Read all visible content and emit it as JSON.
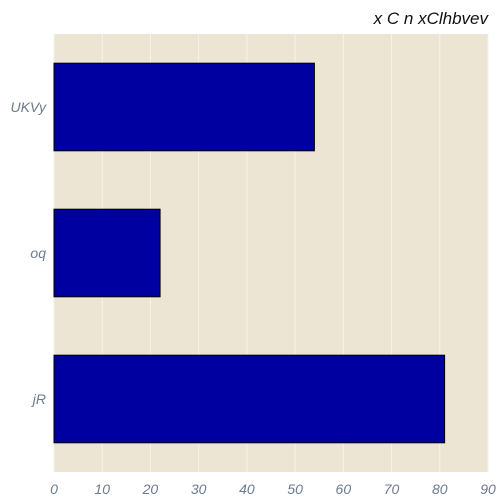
{
  "chart_data": {
    "type": "bar",
    "orientation": "horizontal",
    "title": "x C n xClhbvev",
    "xlabel": "",
    "ylabel": "",
    "categories": [
      "UKVy",
      "oq",
      "jR"
    ],
    "values": [
      54,
      22,
      81
    ],
    "xlim": [
      0,
      90
    ],
    "xticks": [
      0,
      10,
      20,
      30,
      40,
      50,
      60,
      70,
      80,
      90
    ],
    "grid": true,
    "legend": "none"
  },
  "colors": {
    "bar_fill": "#0000a0",
    "bar_edge": "#000000",
    "plot_background": "#ede5d3",
    "grid": "#f7f3ea",
    "tick_text": "#6b7b8c",
    "title_text": "#111111"
  }
}
